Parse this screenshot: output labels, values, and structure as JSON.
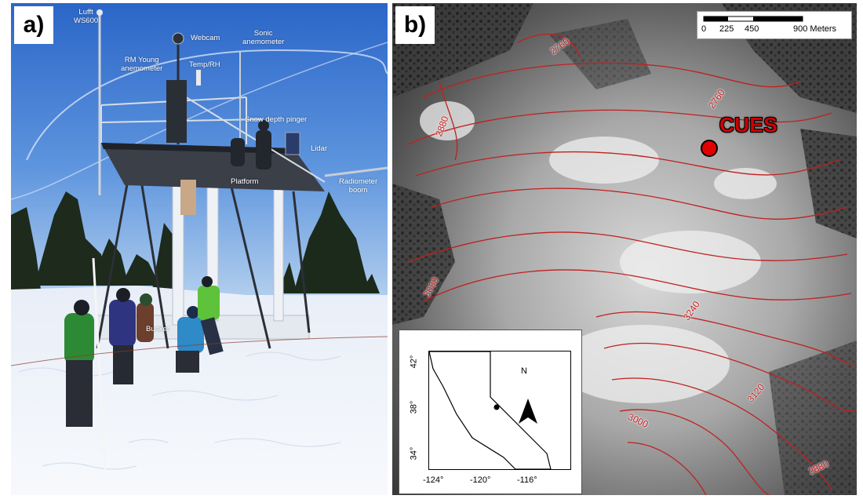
{
  "panel_a": {
    "letter": "a)",
    "annotations": {
      "lufft": "Lufft\nWS600",
      "webcam": "Webcam",
      "sonic": "Sonic\nanemometer",
      "rm_young": "RM Young\nanemometer",
      "temp_rh": "Temp/RH",
      "snow_depth": "Snow depth pinger",
      "lidar": "Lidar",
      "platform": "Platform",
      "radiometer": "Radiometer\nboom",
      "bunker": "Bunker"
    }
  },
  "panel_b": {
    "letter": "b)",
    "scale_bar": {
      "labels": [
        "0",
        "225",
        "450",
        "900 Meters"
      ]
    },
    "site_label": "CUES",
    "contour_labels": [
      "2760",
      "2760",
      "2880",
      "3000",
      "3240",
      "3120",
      "3000",
      "2880"
    ],
    "inset": {
      "y_ticks": [
        "42°",
        "38°",
        "34°"
      ],
      "x_ticks": [
        "-124°",
        "-120°",
        "-116°"
      ],
      "north_label": "N"
    }
  },
  "colors": {
    "contour": "#c02020",
    "site_marker": "#e00000",
    "sky_top": "#2f6fd0",
    "sky_bottom": "#a9cbf0",
    "snow": "#f3f6fb"
  }
}
